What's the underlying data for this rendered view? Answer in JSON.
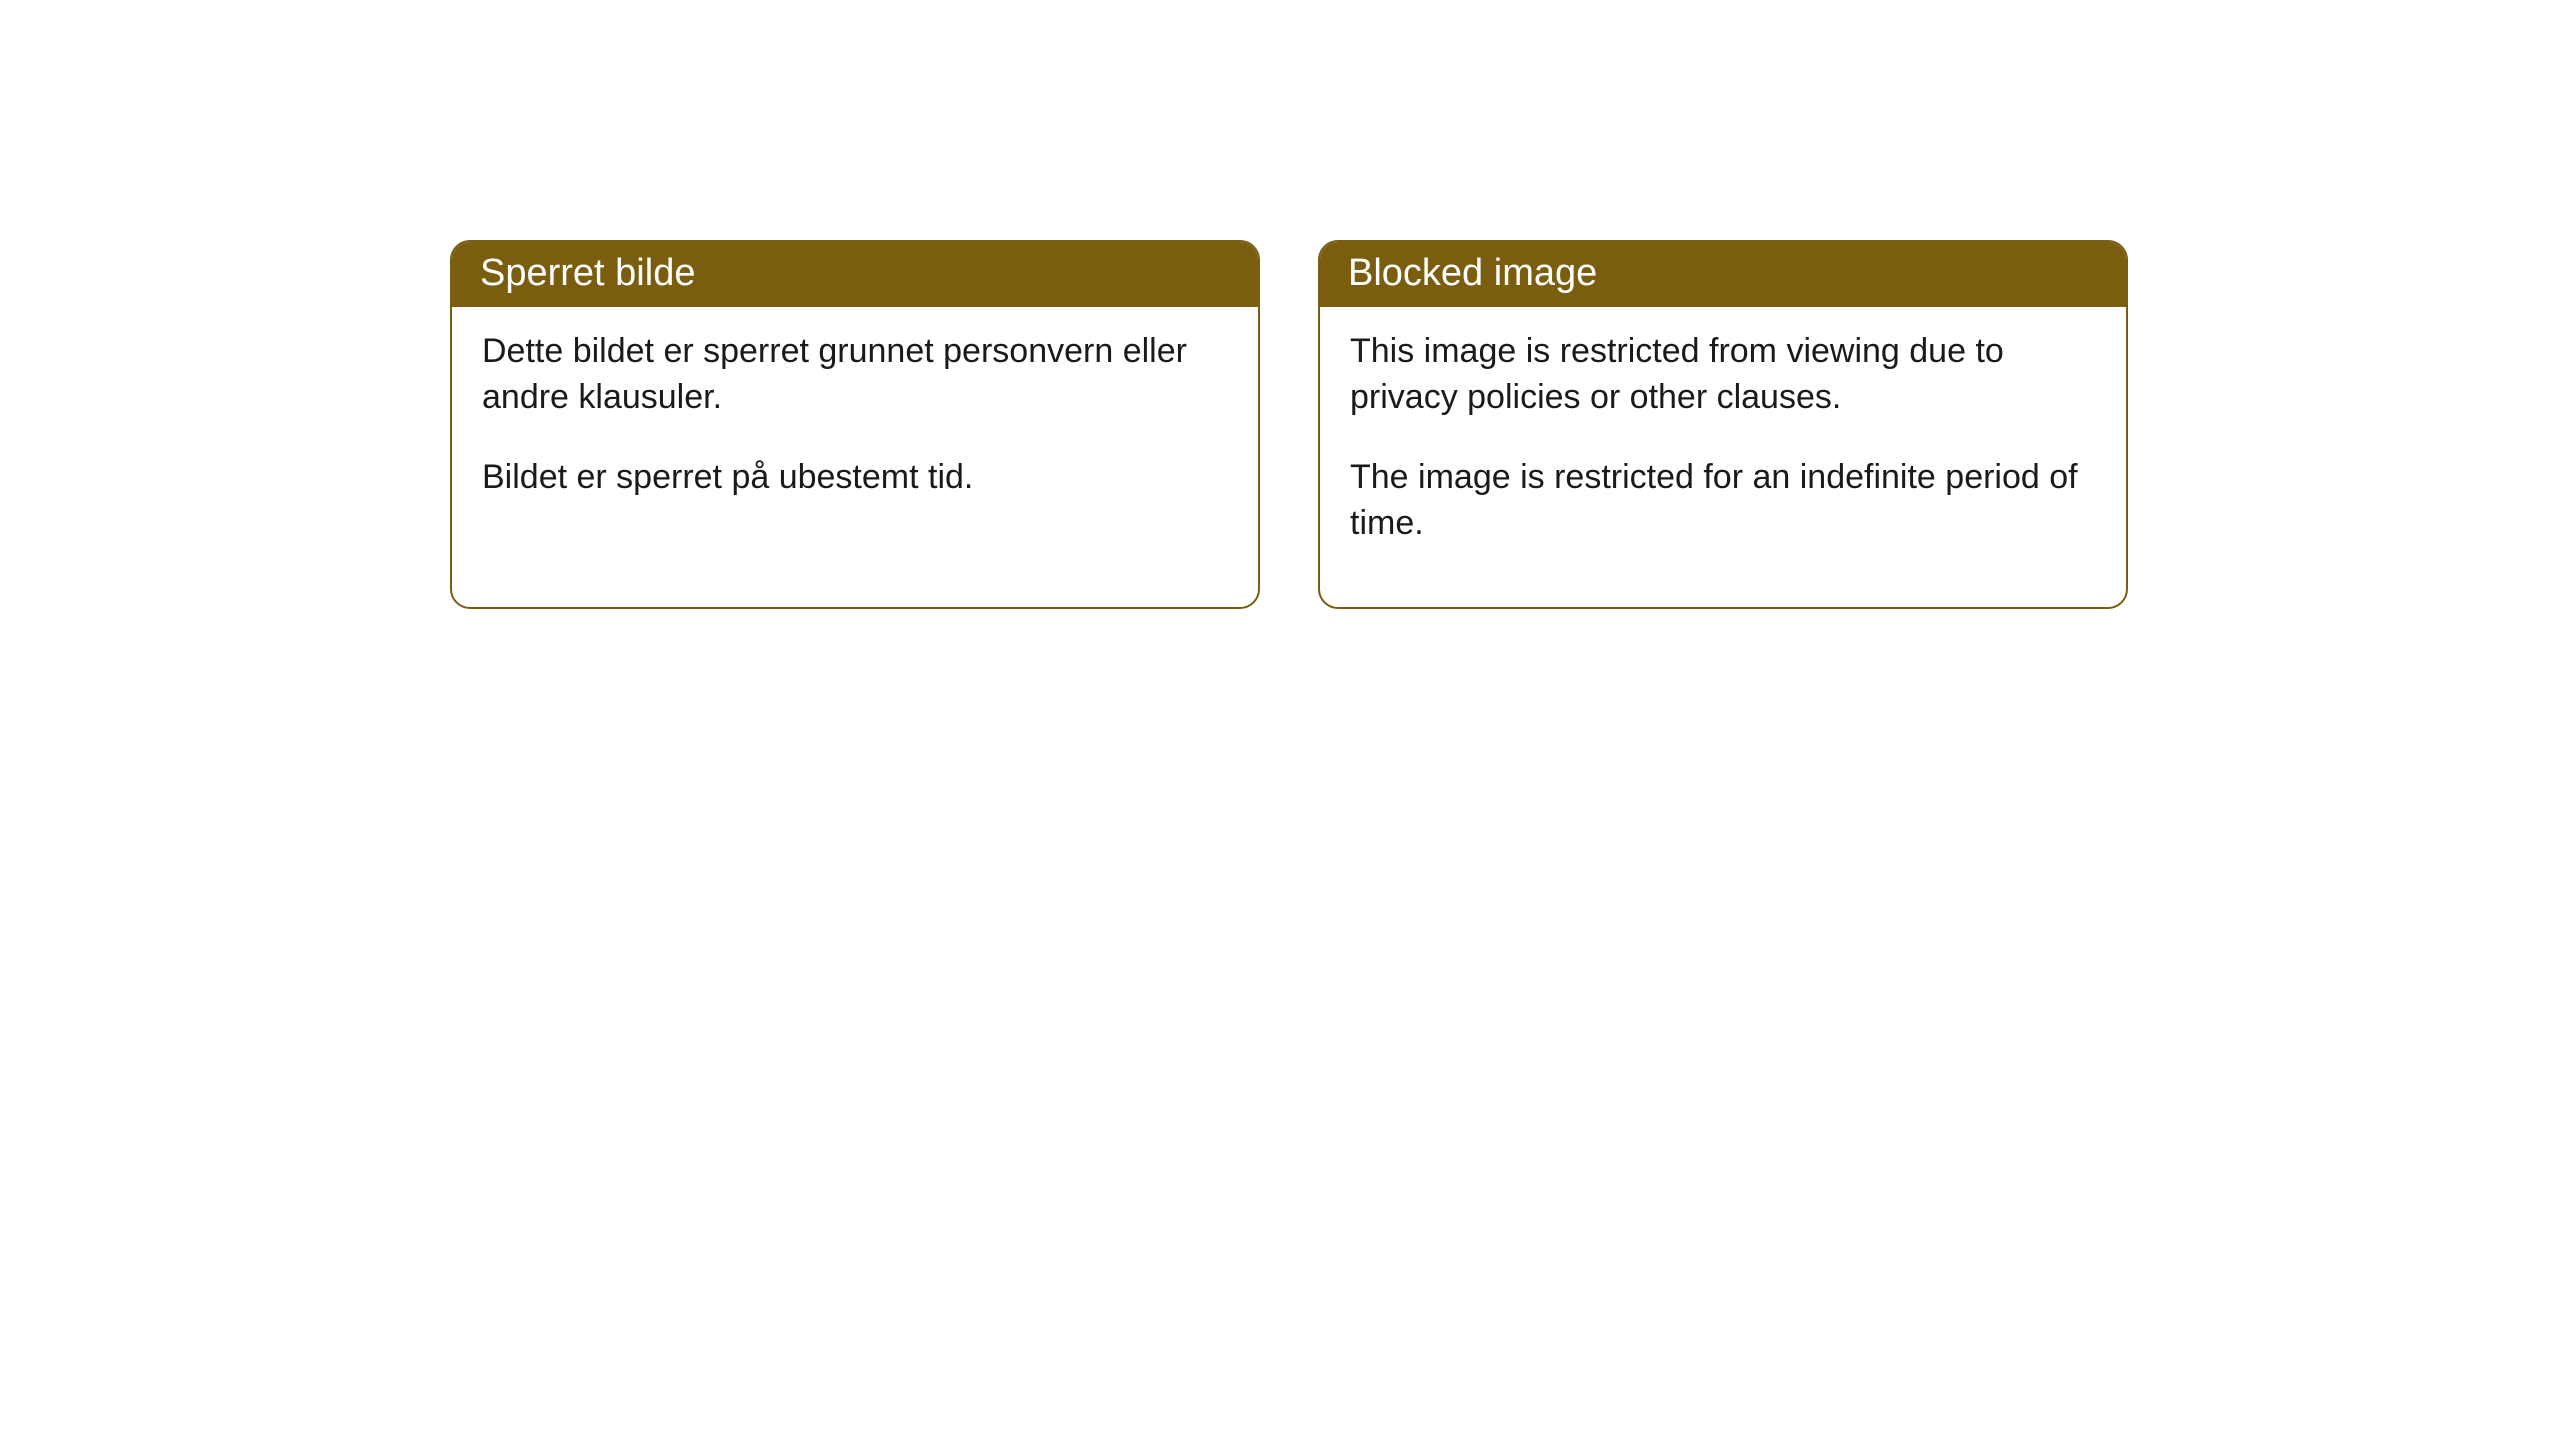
{
  "cards": [
    {
      "title": "Sperret bilde",
      "paragraph1": "Dette bildet er sperret grunnet personvern eller andre klausuler.",
      "paragraph2": "Bildet er sperret på ubestemt tid."
    },
    {
      "title": "Blocked image",
      "paragraph1": "This image is restricted from viewing due to privacy policies or other clauses.",
      "paragraph2": "The image is restricted for an indefinite period of time."
    }
  ],
  "style": {
    "header_bg_color": "#7a5d0f",
    "header_text_color": "#ffffff",
    "border_color": "#7a5d0f",
    "body_text_color": "#1a1a1a",
    "background_color": "#ffffff",
    "border_radius": 20,
    "header_fontsize": 38,
    "body_fontsize": 34
  }
}
